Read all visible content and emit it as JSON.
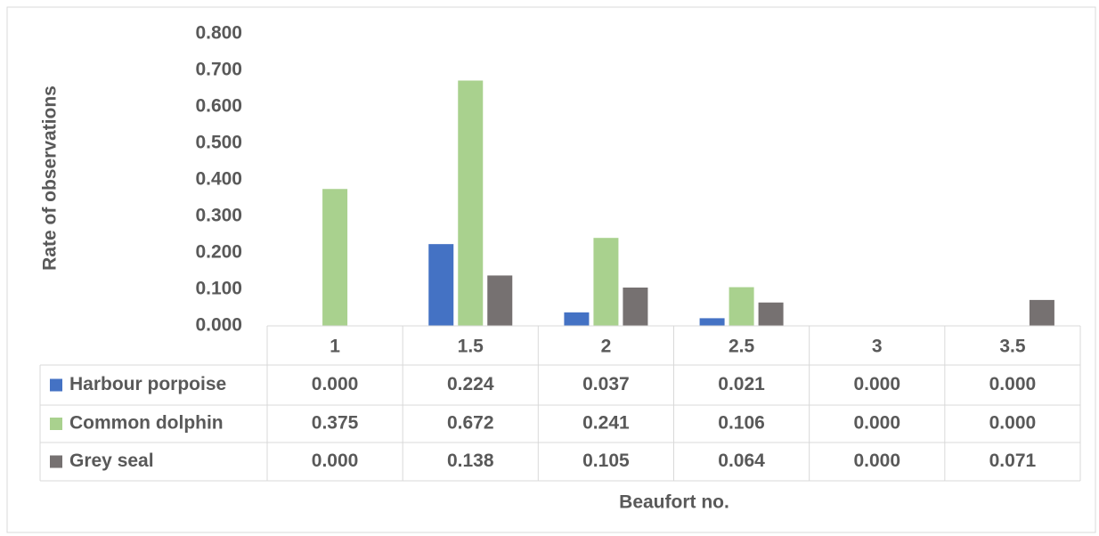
{
  "chart_data": {
    "type": "bar",
    "x_label": "Beaufort  no.",
    "y_label": "Rate of observations",
    "categories": [
      "1",
      "1.5",
      "2",
      "2.5",
      "3",
      "3.5"
    ],
    "series": [
      {
        "name": "Harbour porpoise",
        "color": "#4472c4",
        "values": [
          0,
          0.224,
          0.037,
          0.021,
          0,
          0
        ],
        "value_labels": [
          "0.000",
          "0.224",
          "0.037",
          "0.021",
          "0.000",
          "0.000"
        ]
      },
      {
        "name": "Common dolphin",
        "color": "#a9d18e",
        "values": [
          0.375,
          0.672,
          0.241,
          0.106,
          0,
          0
        ],
        "value_labels": [
          "0.375",
          "0.672",
          "0.241",
          "0.106",
          "0.000",
          "0.000"
        ]
      },
      {
        "name": "Grey seal",
        "color": "#767171",
        "values": [
          0,
          0.138,
          0.105,
          0.064,
          0,
          0.071
        ],
        "value_labels": [
          "0.000",
          "0.138",
          "0.105",
          "0.064",
          "0.000",
          "0.071"
        ]
      }
    ],
    "ylim": [
      0,
      0.8
    ],
    "yticks": [
      {
        "value": 0,
        "label": "0.000"
      },
      {
        "value": 0.1,
        "label": "0.100"
      },
      {
        "value": 0.2,
        "label": "0.200"
      },
      {
        "value": 0.3,
        "label": "0.300"
      },
      {
        "value": 0.4,
        "label": "0.400"
      },
      {
        "value": 0.5,
        "label": "0.500"
      },
      {
        "value": 0.6,
        "label": "0.600"
      },
      {
        "value": 0.7,
        "label": "0.700"
      },
      {
        "value": 0.8,
        "label": "0.800"
      }
    ],
    "data_table": true
  }
}
